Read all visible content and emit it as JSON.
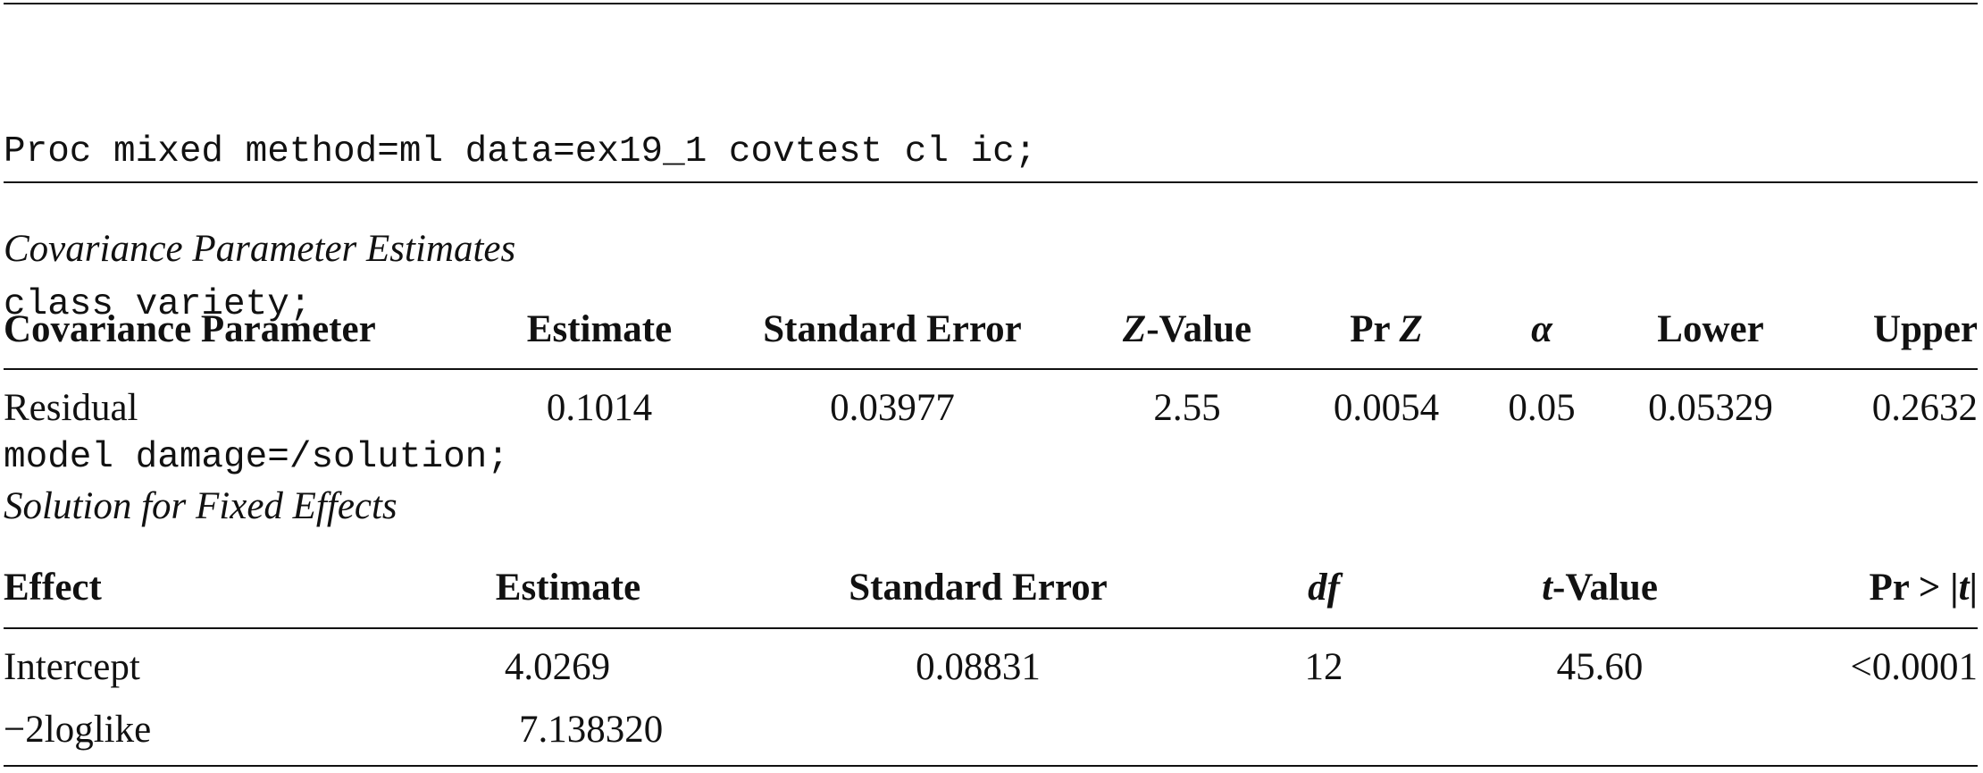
{
  "code": {
    "line1": "Proc mixed method=ml data=ex19_1 covtest cl ic;",
    "line2": "class variety;",
    "line3": "model damage=/solution;"
  },
  "cov_table": {
    "title": "Covariance Parameter Estimates",
    "headers": {
      "parameter": "Covariance Parameter",
      "estimate": "Estimate",
      "std_error": "Standard Error",
      "z_italic": "Z",
      "z_suffix": "-Value",
      "pr_prefix": "Pr ",
      "pr_italic": "Z",
      "alpha": "α",
      "lower": "Lower",
      "upper": "Upper"
    },
    "row": {
      "parameter": "Residual",
      "estimate": "0.1014",
      "std_error": "0.03977",
      "z_value": "2.55",
      "pr_z": "0.0054",
      "alpha": "0.05",
      "lower": "0.05329",
      "upper": "0.2632"
    }
  },
  "fixed_table": {
    "title": "Solution for Fixed Effects",
    "headers": {
      "effect": "Effect",
      "estimate": "Estimate",
      "std_error": "Standard Error",
      "df": "df",
      "t_italic": "t",
      "t_suffix": "-Value",
      "pr_prefix": "Pr > |",
      "pr_italic": "t",
      "pr_suffix": "|"
    },
    "rows": [
      {
        "effect": "Intercept",
        "estimate": "4.0269",
        "std_error": "0.08831",
        "df": "12",
        "t_value": "45.60",
        "pr_t": "<0.0001"
      },
      {
        "effect": "−2loglike",
        "estimate": "7.138320"
      }
    ]
  }
}
